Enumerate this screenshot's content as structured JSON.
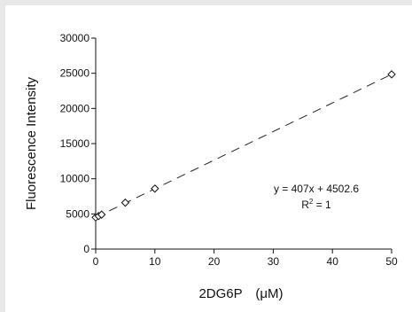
{
  "chart_data": {
    "type": "scatter",
    "xlabel": "2DG6P　(μM)",
    "ylabel": "Fluorescence Intensity",
    "xlim": [
      0,
      50
    ],
    "ylim": [
      0,
      30000
    ],
    "x_ticks": [
      "0",
      "10",
      "20",
      "30",
      "40",
      "50"
    ],
    "y_ticks": [
      "0",
      "5000",
      "10000",
      "15000",
      "20000",
      "25000",
      "30000"
    ],
    "grid": false,
    "marker": "open-diamond",
    "series": [
      {
        "x": [
          0,
          0.5,
          1,
          5,
          10,
          50
        ],
        "y": [
          4500,
          4700,
          4900,
          6600,
          8600,
          24850
        ]
      }
    ],
    "trendline": {
      "style": "dashed",
      "slope": 407,
      "intercept": 4502.6,
      "equation": "y = 407x + 4502.6",
      "r_squared_prefix": "R",
      "r_squared_sup": "2",
      "r_squared_value": " = 1"
    }
  }
}
